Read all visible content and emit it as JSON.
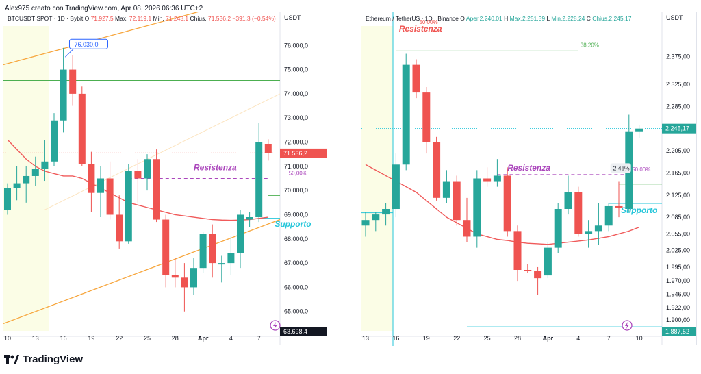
{
  "credit": "Alex975 creato con TradingView.com, Apr 08, 2026 06:36 UTC+2",
  "brand": "TradingView",
  "colors": {
    "up": "#26a69a",
    "down": "#ef5350",
    "ma": "#f05a5a",
    "support": "#26c6da",
    "resist": "#ef5350",
    "purple": "#ab47bc",
    "green": "#4caf50",
    "orange": "#ff9800"
  },
  "chart_data": [
    {
      "type": "candlestick",
      "header": {
        "symbol": "BTCUSDT SPOT · 1D · Bybit",
        "o_label": "O",
        "o_value": "71.927,5",
        "h_label": "Max.",
        "h_value": "72.119,1",
        "l_label": "Min.",
        "l_value": "71.243,1",
        "c_label": "Chius.",
        "c_value": "71.536,2",
        "change": "−391,3 (−0,54%)"
      },
      "currency": "USDT",
      "ylim": [
        64200,
        76800
      ],
      "y_ticks": [
        65000,
        66000,
        67000,
        68000,
        69000,
        70000,
        71000,
        72000,
        73000,
        74000,
        75000,
        76000
      ],
      "y_tick_labels": [
        "65.000,0",
        "66.000,0",
        "67.000,0",
        "68.000,0",
        "69.000,0",
        "70.000,0",
        "71.000,0",
        "72.000,0",
        "73.000,0",
        "74.000,0",
        "75.000,0",
        "76.000,0"
      ],
      "x_tick_labels": [
        "10",
        "13",
        "16",
        "19",
        "22",
        "25",
        "28",
        "Apr",
        "4",
        "7",
        "10",
        "13"
      ],
      "x_tick_index": [
        0,
        3,
        6,
        9,
        12,
        15,
        18,
        21,
        24,
        27,
        30,
        33
      ],
      "candles": [
        {
          "o": 69200,
          "h": 70300,
          "l": 69000,
          "c": 70100
        },
        {
          "o": 70100,
          "h": 71000,
          "l": 69600,
          "c": 70300
        },
        {
          "o": 70300,
          "h": 71000,
          "l": 69500,
          "c": 70600
        },
        {
          "o": 70600,
          "h": 71400,
          "l": 70200,
          "c": 70900
        },
        {
          "o": 70900,
          "h": 72100,
          "l": 70400,
          "c": 71200
        },
        {
          "o": 71200,
          "h": 73200,
          "l": 71000,
          "c": 72900
        },
        {
          "o": 72900,
          "h": 75900,
          "l": 72400,
          "c": 75000
        },
        {
          "o": 75000,
          "h": 75600,
          "l": 73500,
          "c": 74000
        },
        {
          "o": 74000,
          "h": 74300,
          "l": 71000,
          "c": 71100
        },
        {
          "o": 71100,
          "h": 71600,
          "l": 69100,
          "c": 69900
        },
        {
          "o": 69900,
          "h": 71000,
          "l": 68900,
          "c": 70500
        },
        {
          "o": 70500,
          "h": 71200,
          "l": 68800,
          "c": 69000
        },
        {
          "o": 69000,
          "h": 69800,
          "l": 67600,
          "c": 67900
        },
        {
          "o": 67900,
          "h": 71100,
          "l": 67800,
          "c": 70800
        },
        {
          "o": 70800,
          "h": 71300,
          "l": 69500,
          "c": 70500
        },
        {
          "o": 70500,
          "h": 71500,
          "l": 70000,
          "c": 71300
        },
        {
          "o": 71300,
          "h": 71700,
          "l": 68700,
          "c": 68800
        },
        {
          "o": 68800,
          "h": 69000,
          "l": 66000,
          "c": 66500
        },
        {
          "o": 66500,
          "h": 67200,
          "l": 66000,
          "c": 66400
        },
        {
          "o": 66400,
          "h": 67000,
          "l": 65000,
          "c": 66000
        },
        {
          "o": 66000,
          "h": 67200,
          "l": 65700,
          "c": 66800
        },
        {
          "o": 66800,
          "h": 68300,
          "l": 66600,
          "c": 68200
        },
        {
          "o": 68200,
          "h": 68600,
          "l": 66400,
          "c": 67000
        },
        {
          "o": 67000,
          "h": 67300,
          "l": 66200,
          "c": 67000
        },
        {
          "o": 67000,
          "h": 68100,
          "l": 66500,
          "c": 67400
        },
        {
          "o": 67400,
          "h": 69200,
          "l": 66800,
          "c": 69000
        },
        {
          "o": 68800,
          "h": 69100,
          "l": 68500,
          "c": 68900
        },
        {
          "o": 68900,
          "h": 72800,
          "l": 68700,
          "c": 72000
        },
        {
          "o": 71930,
          "h": 72120,
          "l": 71240,
          "c": 71540
        }
      ],
      "ma": [
        72100,
        71700,
        71300,
        71000,
        70800,
        70700,
        70600,
        70600,
        70500,
        70300,
        70100,
        69900,
        69700,
        69500,
        69400,
        69300,
        69200,
        69100,
        69000,
        68950,
        68900,
        68850,
        68800,
        68780,
        68770,
        68780,
        68800,
        68850,
        68900
      ],
      "last_price_label": "71.536,2",
      "last_price": 71536,
      "bottom_price_label": "63.698,4",
      "resistance_label": "Resistenza",
      "support_label": "Supporto",
      "fib_label": "50,00%",
      "top_callout": "76.030,0",
      "levels": {
        "resist_dashed": 70500,
        "green_top": 74550,
        "green_mid": 69800,
        "support": 68850,
        "gray_dotted": 71550,
        "callout": 76030
      }
    },
    {
      "type": "candlestick",
      "header": {
        "symbol": "Ethereum / TetherUS · 1D · Binance",
        "o_label": "O",
        "o_value": "Aper.2.240,01",
        "h_label": "H",
        "h_value": "Max.2.251,39",
        "l_label": "L",
        "l_value": "Min.2.228,24",
        "c_label": "C",
        "c_value": "Chius.2.245,17"
      },
      "currency": "USDT",
      "ylim": [
        1880,
        2430
      ],
      "y_ticks": [
        1900,
        1922,
        1946,
        1970,
        1995,
        2025,
        2055,
        2085,
        2125,
        2165,
        2205,
        2245,
        2285,
        2325,
        2375
      ],
      "y_tick_labels": [
        "1.900,00",
        "1.922,00",
        "1.946,00",
        "1.970,00",
        "1.995,00",
        "2.025,00",
        "2.055,00",
        "2.085,00",
        "2.125,00",
        "2.165,00",
        "2.205,00",
        "",
        "2.285,00",
        "2.325,00",
        "2.375,00"
      ],
      "x_tick_labels": [
        "13",
        "16",
        "19",
        "22",
        "25",
        "28",
        "Apr",
        "4",
        "7",
        "10"
      ],
      "x_tick_index": [
        0,
        3,
        6,
        9,
        12,
        15,
        18,
        21,
        24,
        27
      ],
      "candles": [
        {
          "o": 2070,
          "h": 2095,
          "l": 2050,
          "c": 2080
        },
        {
          "o": 2080,
          "h": 2095,
          "l": 2060,
          "c": 2090
        },
        {
          "o": 2090,
          "h": 2110,
          "l": 2070,
          "c": 2100
        },
        {
          "o": 2100,
          "h": 2200,
          "l": 2085,
          "c": 2180
        },
        {
          "o": 2180,
          "h": 2380,
          "l": 2170,
          "c": 2360
        },
        {
          "o": 2360,
          "h": 2370,
          "l": 2300,
          "c": 2310
        },
        {
          "o": 2310,
          "h": 2320,
          "l": 2200,
          "c": 2220
        },
        {
          "o": 2220,
          "h": 2230,
          "l": 2115,
          "c": 2120
        },
        {
          "o": 2120,
          "h": 2170,
          "l": 2110,
          "c": 2150
        },
        {
          "o": 2150,
          "h": 2160,
          "l": 2070,
          "c": 2080
        },
        {
          "o": 2080,
          "h": 2120,
          "l": 2040,
          "c": 2050
        },
        {
          "o": 2050,
          "h": 2170,
          "l": 2030,
          "c": 2155
        },
        {
          "o": 2155,
          "h": 2175,
          "l": 2140,
          "c": 2150
        },
        {
          "o": 2150,
          "h": 2190,
          "l": 2140,
          "c": 2160
        },
        {
          "o": 2160,
          "h": 2175,
          "l": 2050,
          "c": 2060
        },
        {
          "o": 2060,
          "h": 2070,
          "l": 1970,
          "c": 1990
        },
        {
          "o": 1990,
          "h": 2000,
          "l": 1985,
          "c": 1988
        },
        {
          "o": 1988,
          "h": 1995,
          "l": 1945,
          "c": 1975
        },
        {
          "o": 1980,
          "h": 2040,
          "l": 1975,
          "c": 2030
        },
        {
          "o": 2030,
          "h": 2110,
          "l": 2020,
          "c": 2100
        },
        {
          "o": 2100,
          "h": 2160,
          "l": 2090,
          "c": 2130
        },
        {
          "o": 2130,
          "h": 2140,
          "l": 2050,
          "c": 2055
        },
        {
          "o": 2055,
          "h": 2080,
          "l": 2030,
          "c": 2060
        },
        {
          "o": 2060,
          "h": 2110,
          "l": 2035,
          "c": 2070
        },
        {
          "o": 2070,
          "h": 2110,
          "l": 2060,
          "c": 2105
        },
        {
          "o": 2105,
          "h": 2150,
          "l": 2085,
          "c": 2103
        },
        {
          "o": 2100,
          "h": 2270,
          "l": 2095,
          "c": 2240
        },
        {
          "o": 2240,
          "h": 2251,
          "l": 2228,
          "c": 2245
        }
      ],
      "ma": [
        2180,
        2170,
        2160,
        2150,
        2140,
        2130,
        2115,
        2100,
        2085,
        2075,
        2065,
        2055,
        2050,
        2045,
        2043,
        2040,
        2038,
        2037,
        2036,
        2038,
        2040,
        2042,
        2044,
        2047,
        2050,
        2055,
        2060,
        2067
      ],
      "last_price_label": "2.245,17",
      "last_price": 2245,
      "bottom_price_label": "1.887,52",
      "resistance_label": "Resistenza",
      "support_label": "Supporto",
      "fib_label": "50,00%",
      "fib_top_label": "38,20%",
      "fib_top_left_label": "50,00%",
      "percent_label": "2,46%",
      "levels": {
        "resist_dashed": 2162,
        "resist_top": 2385,
        "green_mid": 2145,
        "support": 2110,
        "gray_dotted": 2245,
        "bottom": 1887
      }
    }
  ]
}
